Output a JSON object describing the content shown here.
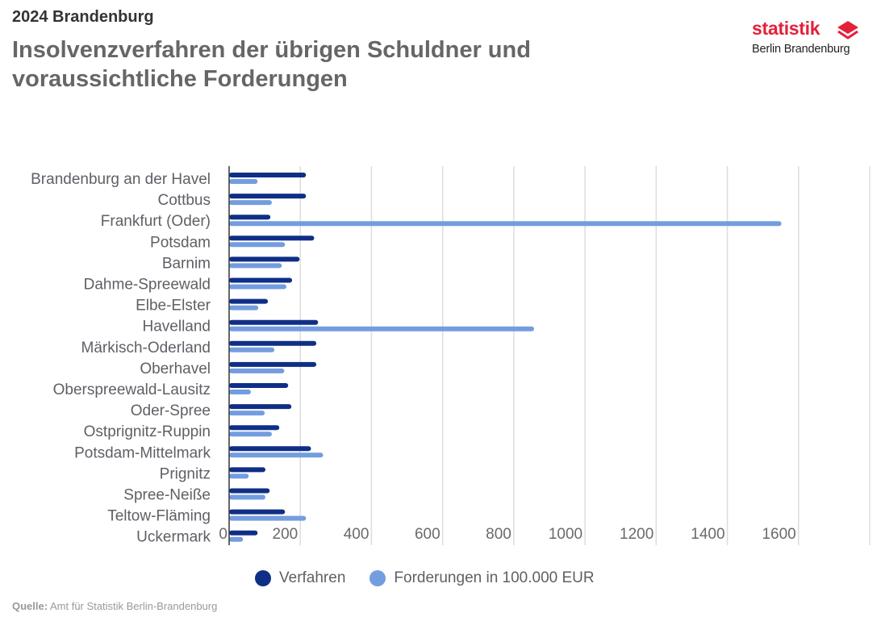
{
  "header": {
    "supertitle": "2024 Brandenburg",
    "title": "Insolvenzverfahren der übrigen Schuldner und voraussichtliche Forderungen"
  },
  "logo": {
    "word": "statistik",
    "sub": "Berlin Brandenburg",
    "color": "#e3213a",
    "icon": "stacked-layers-icon"
  },
  "source": {
    "label": "Quelle:",
    "text": "Amt für Statistik Berlin-Brandenburg"
  },
  "chart_data": {
    "type": "bar",
    "orientation": "horizontal",
    "title": "Insolvenzverfahren der übrigen Schuldner und voraussichtliche Forderungen",
    "xlabel": "",
    "ylabel": "",
    "xlim": [
      0,
      1800
    ],
    "x_ticks": [
      0,
      200,
      400,
      600,
      800,
      1000,
      1200,
      1400,
      1600
    ],
    "grid": true,
    "legend_position": "bottom-center",
    "categories": [
      "Brandenburg an der Havel",
      "Cottbus",
      "Frankfurt (Oder)",
      "Potsdam",
      "Barnim",
      "Dahme-Spreewald",
      "Elbe-Elster",
      "Havelland",
      "Märkisch-Oderland",
      "Oberhavel",
      "Oberspreewald-Lausitz",
      "Oder-Spree",
      "Ostprignitz-Ruppin",
      "Potsdam-Mittelmark",
      "Prignitz",
      "Spree-Neiße",
      "Teltow-Fläming",
      "Uckermark"
    ],
    "series": [
      {
        "name": "Verfahren",
        "color": "#0f2f86",
        "values": [
          216,
          216,
          116,
          239,
          198,
          177,
          109,
          250,
          245,
          245,
          166,
          175,
          141,
          230,
          102,
          114,
          157,
          80
        ]
      },
      {
        "name": "Forderungen in 100.000 EUR",
        "color": "#739ddf",
        "values": [
          80,
          120,
          1552,
          157,
          148,
          161,
          82,
          857,
          127,
          155,
          61,
          100,
          120,
          264,
          55,
          102,
          216,
          39
        ]
      }
    ]
  }
}
